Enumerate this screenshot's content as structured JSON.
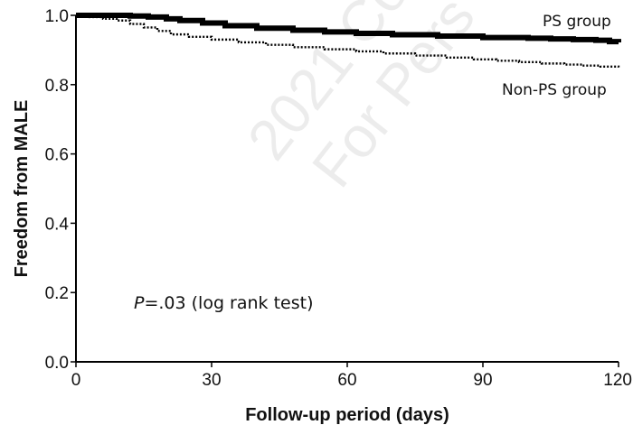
{
  "chart_data": {
    "type": "line",
    "subtype": "kaplan-meier step curve",
    "title": "",
    "xlabel": "Follow-up period (days)",
    "ylabel": "Freedom from MALE",
    "xlim": [
      0,
      120
    ],
    "ylim": [
      0.0,
      1.0
    ],
    "x_ticks": [
      "0",
      "30",
      "60",
      "90",
      "120"
    ],
    "y_ticks": [
      "0.0",
      "0.2",
      "0.4",
      "0.6",
      "0.8",
      "1.0"
    ],
    "grid": false,
    "annotation": {
      "italic_part": "P",
      "rest": "=.03 (log rank test)"
    },
    "watermark": {
      "line1": "2021 Co",
      "line2": "For Pers"
    },
    "series": [
      {
        "name": "PS group",
        "style": "solid-thick",
        "color": "#000000",
        "x": [
          0,
          10,
          12,
          16,
          20,
          23,
          28,
          33,
          40,
          48,
          55,
          62,
          70,
          80,
          90,
          100,
          105,
          110,
          115,
          118,
          120
        ],
        "y": [
          1.0,
          1.0,
          0.998,
          0.995,
          0.99,
          0.985,
          0.978,
          0.97,
          0.963,
          0.957,
          0.952,
          0.948,
          0.944,
          0.94,
          0.936,
          0.934,
          0.932,
          0.93,
          0.928,
          0.924,
          0.922
        ]
      },
      {
        "name": "Non-PS group",
        "style": "dotted",
        "color": "#000000",
        "x": [
          0,
          3,
          6,
          9,
          12,
          15,
          18,
          21,
          25,
          30,
          36,
          42,
          48,
          55,
          62,
          68,
          75,
          82,
          88,
          93,
          98,
          103,
          108,
          112,
          116,
          120
        ],
        "y": [
          1.0,
          0.995,
          0.99,
          0.985,
          0.975,
          0.965,
          0.955,
          0.945,
          0.938,
          0.93,
          0.922,
          0.915,
          0.908,
          0.902,
          0.896,
          0.89,
          0.884,
          0.878,
          0.873,
          0.869,
          0.865,
          0.861,
          0.858,
          0.855,
          0.852,
          0.85
        ]
      }
    ]
  }
}
